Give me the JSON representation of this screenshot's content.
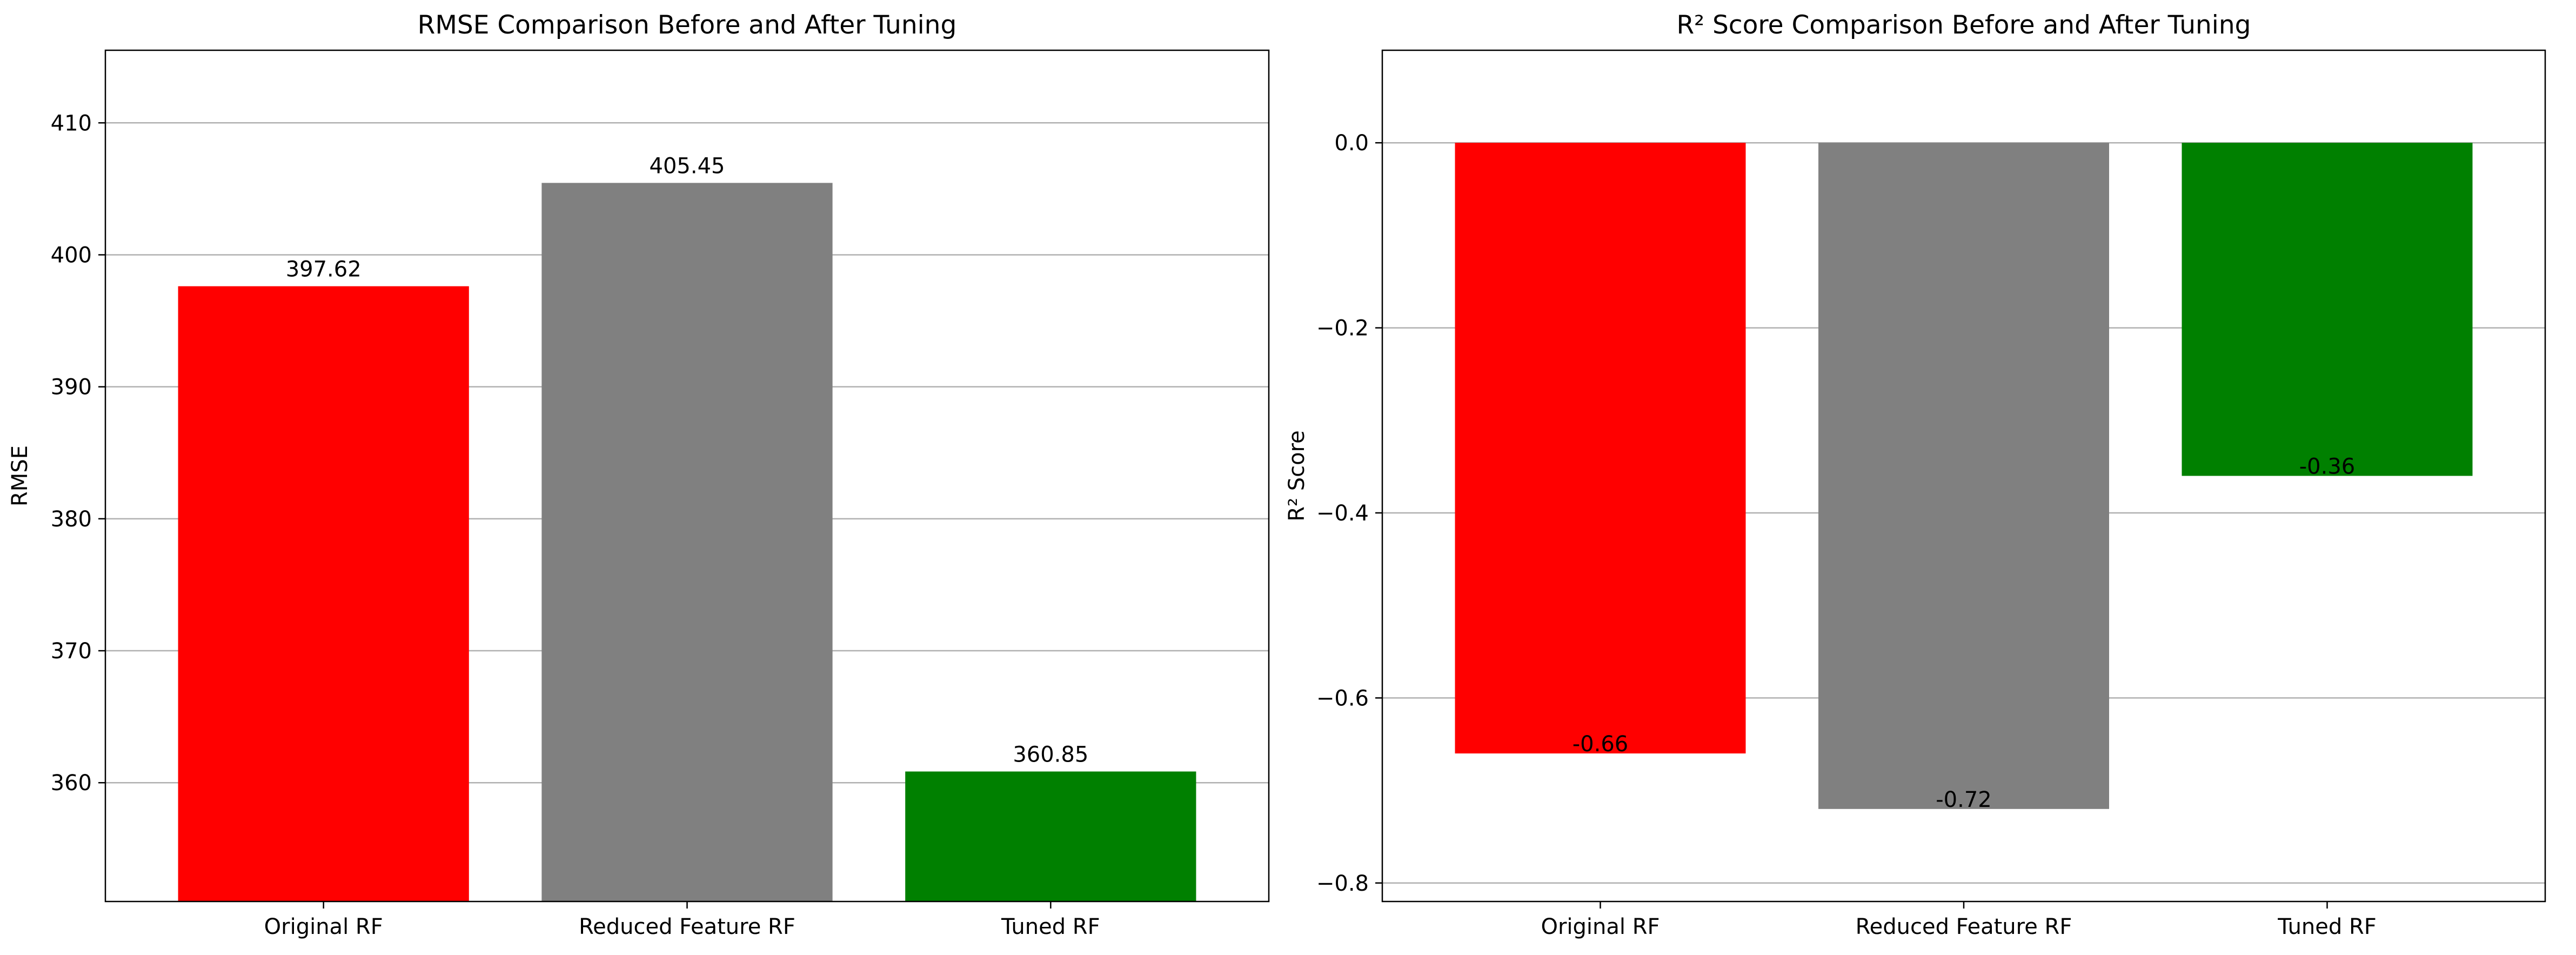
{
  "chart_data": [
    {
      "type": "bar",
      "title": "RMSE Comparison Before and After Tuning",
      "xlabel": "",
      "ylabel": "RMSE",
      "categories": [
        "Original RF",
        "Reduced Feature RF",
        "Tuned RF"
      ],
      "values": [
        397.62,
        405.45,
        360.85
      ],
      "data_labels": [
        "397.62",
        "405.45",
        "360.85"
      ],
      "colors": [
        "#ff0000",
        "#808080",
        "#008000"
      ],
      "ylim": [
        351,
        415.5
      ],
      "yticks": [
        360,
        370,
        380,
        390,
        400,
        410
      ],
      "ytick_labels": [
        "360",
        "370",
        "380",
        "390",
        "400",
        "410"
      ],
      "grid": "y",
      "label_position": "above"
    },
    {
      "type": "bar",
      "title": "R² Score Comparison Before and After Tuning",
      "xlabel": "",
      "ylabel": "R² Score",
      "categories": [
        "Original RF",
        "Reduced Feature RF",
        "Tuned RF"
      ],
      "values": [
        -0.66,
        -0.72,
        -0.36
      ],
      "data_labels": [
        "-0.66",
        "-0.72",
        "-0.36"
      ],
      "colors": [
        "#ff0000",
        "#808080",
        "#008000"
      ],
      "ylim": [
        -0.82,
        0.1
      ],
      "yticks": [
        -0.8,
        -0.6,
        -0.4,
        -0.2,
        0.0
      ],
      "ytick_labels": [
        "−0.8",
        "−0.6",
        "−0.4",
        "−0.2",
        "0.0"
      ],
      "grid": "y",
      "label_position": "bottom"
    }
  ]
}
